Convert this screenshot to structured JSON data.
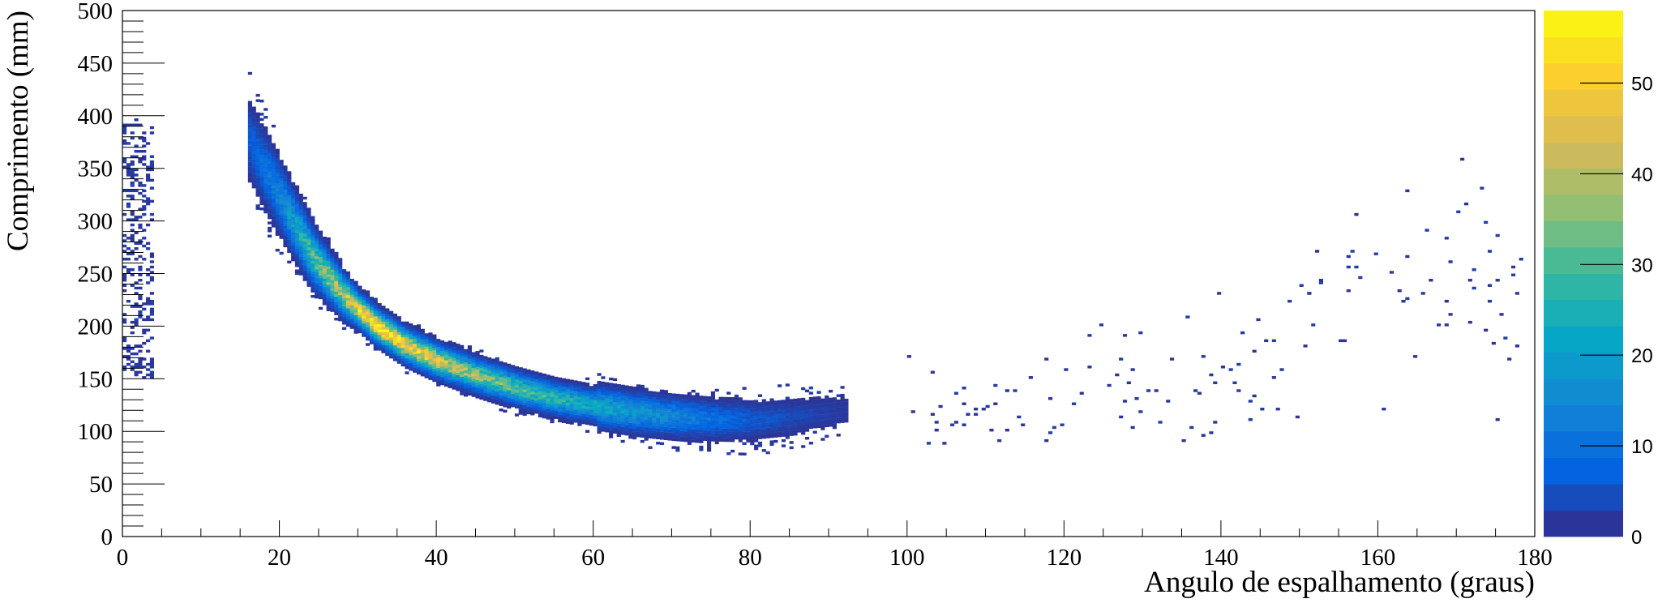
{
  "chart_data": {
    "type": "heatmap",
    "title": "",
    "xlabel": "Angulo de espalhamento (graus)",
    "ylabel": "Comprimento (mm)",
    "xlim": [
      0,
      180
    ],
    "ylim": [
      0,
      500
    ],
    "x_ticks": [
      0,
      20,
      40,
      60,
      80,
      100,
      120,
      140,
      160,
      180
    ],
    "y_ticks": [
      0,
      50,
      100,
      150,
      200,
      250,
      300,
      350,
      400,
      450,
      500
    ],
    "colorbar": {
      "min": 0,
      "max": 58,
      "ticks": [
        0,
        10,
        20,
        30,
        40,
        50
      ],
      "palette": [
        "#352a87",
        "#0363e1",
        "#1485d4",
        "#06a7c6",
        "#38b99e",
        "#92bf73",
        "#d9ba56",
        "#fcce2e",
        "#f9fb0e"
      ]
    },
    "grid": false,
    "legend": "none",
    "band": {
      "description_points": [
        {
          "x": 16,
          "y": 375,
          "peak_count": 6
        },
        {
          "x": 20,
          "y": 320,
          "peak_count": 14
        },
        {
          "x": 24,
          "y": 265,
          "peak_count": 30
        },
        {
          "x": 28,
          "y": 228,
          "peak_count": 42
        },
        {
          "x": 32,
          "y": 200,
          "peak_count": 56
        },
        {
          "x": 36,
          "y": 180,
          "peak_count": 50
        },
        {
          "x": 40,
          "y": 166,
          "peak_count": 44
        },
        {
          "x": 45,
          "y": 152,
          "peak_count": 36
        },
        {
          "x": 50,
          "y": 140,
          "peak_count": 30
        },
        {
          "x": 55,
          "y": 130,
          "peak_count": 26
        },
        {
          "x": 60,
          "y": 123,
          "peak_count": 22
        },
        {
          "x": 65,
          "y": 117,
          "peak_count": 18
        },
        {
          "x": 70,
          "y": 113,
          "peak_count": 14
        },
        {
          "x": 75,
          "y": 110,
          "peak_count": 10
        },
        {
          "x": 80,
          "y": 109,
          "peak_count": 6
        },
        {
          "x": 88,
          "y": 115,
          "peak_count": 3
        },
        {
          "x": 92,
          "y": 118,
          "peak_count": 2
        }
      ],
      "tail_points": [
        {
          "x": 100,
          "y": 115
        },
        {
          "x": 110,
          "y": 120
        },
        {
          "x": 120,
          "y": 130
        },
        {
          "x": 130,
          "y": 140
        },
        {
          "x": 140,
          "y": 165
        },
        {
          "x": 150,
          "y": 185
        },
        {
          "x": 160,
          "y": 225
        },
        {
          "x": 170,
          "y": 255
        },
        {
          "x": 178,
          "y": 200
        }
      ],
      "edge_strip": {
        "x_range": [
          0,
          4
        ],
        "y_range": [
          150,
          395
        ]
      }
    }
  }
}
